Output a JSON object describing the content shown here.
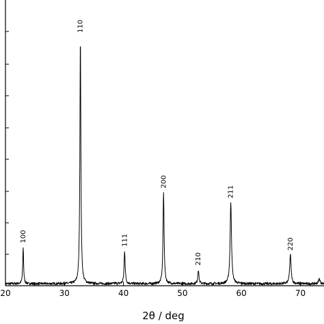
{
  "chart_data": {
    "type": "line",
    "title": "",
    "xlabel": "2θ / deg",
    "ylabel": "",
    "xlim": [
      20,
      74
    ],
    "ylim": [
      0,
      1000
    ],
    "x_ticks": [
      "20",
      "30",
      "40",
      "50",
      "60",
      "70"
    ],
    "y_ticks_shown_without_labels": 9,
    "grid": false,
    "baseline": 8,
    "peaks": [
      {
        "label": "100",
        "x": 23.0,
        "y": 155,
        "width": 0.18
      },
      {
        "label": "110",
        "x": 32.7,
        "y": 1000,
        "width": 0.2
      },
      {
        "label": "111",
        "x": 40.2,
        "y": 140,
        "width": 0.22
      },
      {
        "label": "200",
        "x": 46.8,
        "y": 375,
        "width": 0.22
      },
      {
        "label": "210",
        "x": 52.7,
        "y": 65,
        "width": 0.22
      },
      {
        "label": "211",
        "x": 58.2,
        "y": 335,
        "width": 0.28
      },
      {
        "label": "220",
        "x": 68.3,
        "y": 125,
        "width": 0.28
      }
    ],
    "minor_peaks": [
      {
        "x": 73.2,
        "y": 28,
        "width": 0.3
      },
      {
        "x": 38.6,
        "y": 10,
        "width": 0.2
      },
      {
        "x": 55.0,
        "y": 8,
        "width": 0.3
      }
    ]
  }
}
